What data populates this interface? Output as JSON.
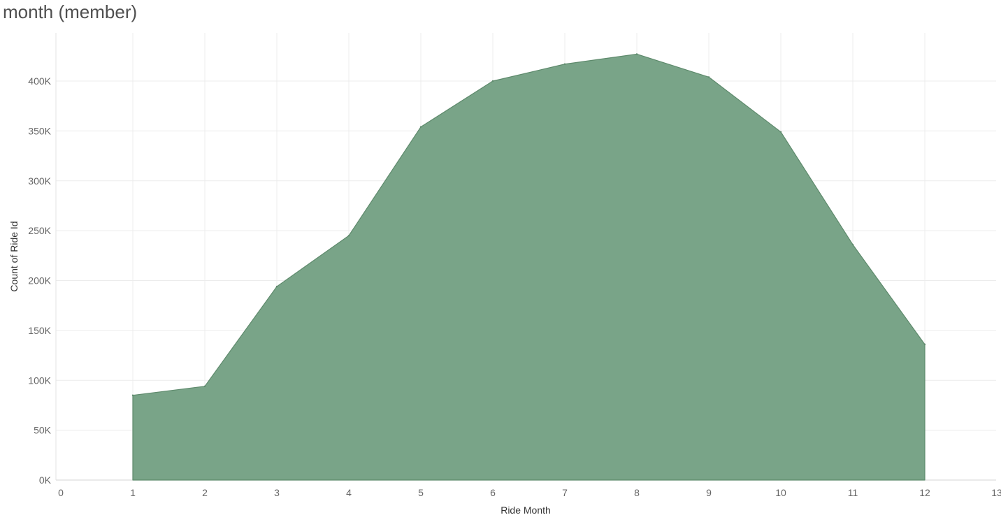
{
  "chart_data": {
    "type": "area",
    "title": "month (member)",
    "xlabel": "Ride Month",
    "ylabel": "Count of Ride Id",
    "x": [
      1,
      2,
      3,
      4,
      5,
      6,
      7,
      8,
      9,
      10,
      11,
      12
    ],
    "series": [
      {
        "values": [
          85000,
          94000,
          194000,
          245000,
          354000,
          400000,
          417000,
          427000,
          404000,
          349000,
          236000,
          136000
        ]
      }
    ],
    "xlim": [
      0,
      13
    ],
    "ylim": [
      0,
      440000
    ],
    "xticks": [
      "0",
      "1",
      "2",
      "3",
      "4",
      "5",
      "6",
      "7",
      "8",
      "9",
      "10",
      "11",
      "12",
      "13"
    ],
    "yticks": [
      "0K",
      "50K",
      "100K",
      "150K",
      "200K",
      "250K",
      "300K",
      "350K",
      "400K"
    ],
    "ytick_values": [
      0,
      50000,
      100000,
      150000,
      200000,
      250000,
      300000,
      350000,
      400000
    ],
    "grid": true,
    "colors": {
      "fill": "#79a488",
      "stroke": "#5e8a6c",
      "grid": "#ececec"
    }
  }
}
